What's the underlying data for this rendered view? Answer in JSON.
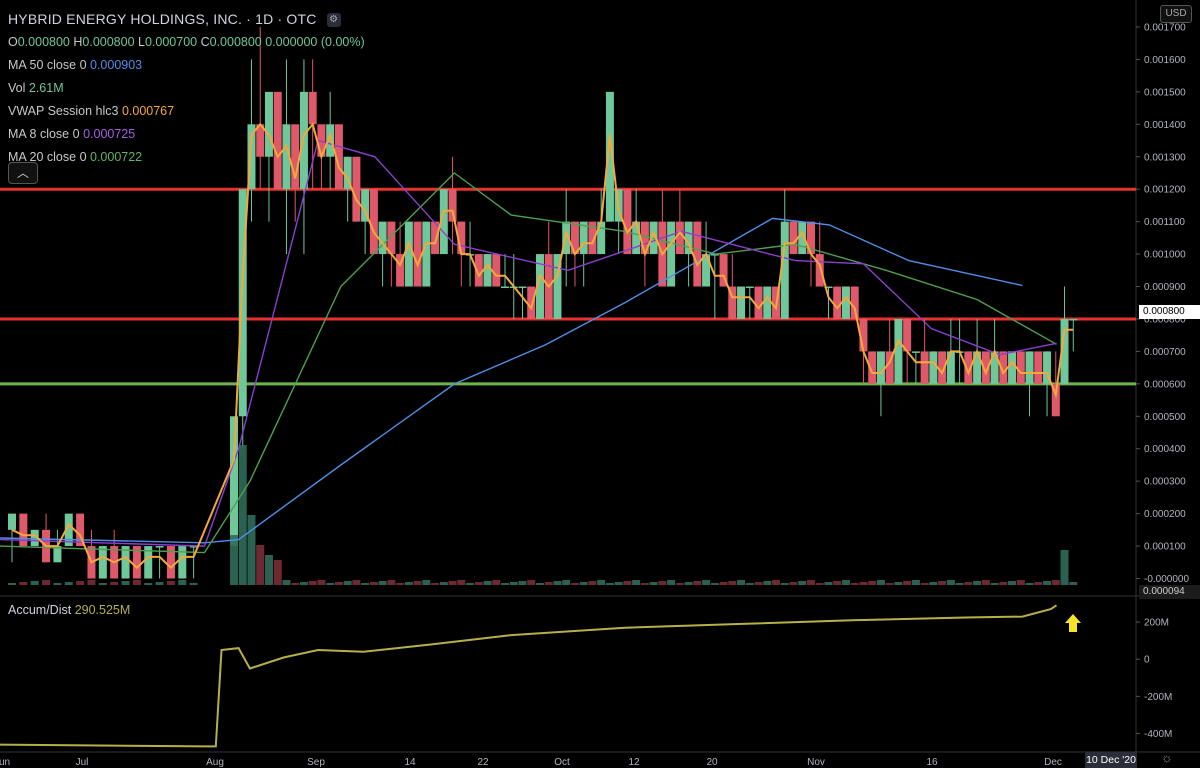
{
  "legend": {
    "title": "HYBRID ENERGY HOLDINGS, INC. · 1D · OTC",
    "ohlc": {
      "o": "0.000800",
      "h": "0.000800",
      "l": "0.000700",
      "c": "0.000800",
      "change": "0.000000 (0.00%)"
    },
    "ma50": {
      "label": "MA 50 close 0",
      "value": "0.000903"
    },
    "vol": {
      "label": "Vol",
      "value": "2.61M"
    },
    "vwap": {
      "label": "VWAP Session hlc3",
      "value": "0.000767"
    },
    "ma8": {
      "label": "MA 8 close 0",
      "value": "0.000725"
    },
    "ma20": {
      "label": "MA 20 close 0",
      "value": "0.000722"
    }
  },
  "sub_legend": {
    "label": "Accum/Dist",
    "value": "290.525M"
  },
  "currency_button": "USD",
  "crosshair_date": "10 Dec '20",
  "price_badges": [
    {
      "text": "0.000800",
      "color": "#ffffff",
      "bg": "#ffffff",
      "fg": "#000000"
    },
    {
      "text": "0.000094",
      "color": "#888888",
      "bg": "#1c1c1c",
      "fg": "#cccccc"
    }
  ],
  "colors": {
    "up": "#6fc79a",
    "down": "#e0596a",
    "ma50": "#4f8fe8",
    "ma8": "#8c3fd0",
    "ma20": "#4ea04e",
    "vwap": "#f4a83a",
    "ad": "#b7b04a",
    "resistance": "#e8322f",
    "support": "#6bb54f",
    "arrow": "#f5e52a"
  },
  "chart_data": {
    "type": "candlestick",
    "x_ticks": [
      "Jun",
      "Jul",
      "Aug",
      "Sep",
      "14",
      "22",
      "Oct",
      "12",
      "20",
      "Nov",
      "16",
      "Dec"
    ],
    "y_ticks": [
      "0.001700",
      "0.001600",
      "0.001500",
      "0.001400",
      "0.001300",
      "0.001200",
      "0.001100",
      "0.001000",
      "0.000900",
      "0.000800",
      "0.000700",
      "0.000600",
      "0.000500",
      "0.000400",
      "0.000300",
      "0.000200",
      "0.000100",
      "-0.000000"
    ],
    "ylim": [
      -2e-05,
      0.00174
    ],
    "horizontal_levels": [
      {
        "value": 0.0012,
        "color": "resistance"
      },
      {
        "value": 0.0008,
        "color": "resistance"
      },
      {
        "value": 0.0006,
        "color": "support"
      }
    ],
    "sub_y_ticks": [
      "200M",
      "0",
      "-200M",
      "-400M"
    ],
    "sub_ylim": [
      -500,
      330
    ],
    "candles_early": [
      {
        "o": 0.00015,
        "h": 0.0002,
        "l": 5e-05,
        "c": 0.0002
      },
      {
        "o": 0.0002,
        "h": 0.0002,
        "l": 0.0001,
        "c": 0.0001
      },
      {
        "o": 0.0001,
        "h": 0.00015,
        "l": 0.0001,
        "c": 0.00015
      },
      {
        "o": 0.00015,
        "h": 0.0002,
        "l": 5e-05,
        "c": 5e-05
      },
      {
        "o": 5e-05,
        "h": 0.00015,
        "l": 5e-05,
        "c": 0.0001
      },
      {
        "o": 0.0001,
        "h": 0.0002,
        "l": 0.0001,
        "c": 0.0002
      },
      {
        "o": 0.0002,
        "h": 0.0002,
        "l": 0.0001,
        "c": 0.0001
      },
      {
        "o": 0.0001,
        "h": 0.00015,
        "l": 0.0,
        "c": 0.0
      },
      {
        "o": 0.0,
        "h": 0.0001,
        "l": 0.0,
        "c": 0.0001
      },
      {
        "o": 0.0001,
        "h": 0.00015,
        "l": 0.0,
        "c": 0.0
      },
      {
        "o": 0.0,
        "h": 0.0001,
        "l": 0.0,
        "c": 0.0001
      },
      {
        "o": 0.0001,
        "h": 0.0001,
        "l": 0.0,
        "c": 0.0
      },
      {
        "o": 0.0,
        "h": 0.0001,
        "l": 0.0,
        "c": 0.0001
      },
      {
        "o": 0.0001,
        "h": 0.0001,
        "l": 0.0,
        "c": 0.0001
      },
      {
        "o": 0.0001,
        "h": 0.0001,
        "l": 0.0,
        "c": 0.0
      },
      {
        "o": 0.0,
        "h": 0.0001,
        "l": 0.0,
        "c": 0.0001
      },
      {
        "o": 0.0001,
        "h": 0.0001,
        "l": 0.0,
        "c": 0.0001
      }
    ],
    "candles_late": [
      {
        "o": 0.0001,
        "h": 0.0005,
        "l": 0.0001,
        "c": 0.0005
      },
      {
        "o": 0.0005,
        "h": 0.0012,
        "l": 0.0004,
        "c": 0.0012
      },
      {
        "o": 0.0012,
        "h": 0.0016,
        "l": 0.0011,
        "c": 0.0014
      },
      {
        "o": 0.0014,
        "h": 0.0017,
        "l": 0.0012,
        "c": 0.0013
      },
      {
        "o": 0.0013,
        "h": 0.0015,
        "l": 0.0011,
        "c": 0.0015
      },
      {
        "o": 0.0015,
        "h": 0.0015,
        "l": 0.0012,
        "c": 0.0012
      },
      {
        "o": 0.0012,
        "h": 0.0016,
        "l": 0.001,
        "c": 0.0014
      },
      {
        "o": 0.0014,
        "h": 0.0014,
        "l": 0.0011,
        "c": 0.0012
      },
      {
        "o": 0.0012,
        "h": 0.0016,
        "l": 0.001,
        "c": 0.0015
      },
      {
        "o": 0.0015,
        "h": 0.0016,
        "l": 0.0012,
        "c": 0.0014
      },
      {
        "o": 0.0014,
        "h": 0.0014,
        "l": 0.0012,
        "c": 0.0013
      },
      {
        "o": 0.0013,
        "h": 0.0015,
        "l": 0.0012,
        "c": 0.0014
      },
      {
        "o": 0.0014,
        "h": 0.0014,
        "l": 0.0012,
        "c": 0.0012
      },
      {
        "o": 0.0012,
        "h": 0.0013,
        "l": 0.0011,
        "c": 0.0013
      },
      {
        "o": 0.0013,
        "h": 0.0013,
        "l": 0.0011,
        "c": 0.0011
      },
      {
        "o": 0.0011,
        "h": 0.0012,
        "l": 0.001,
        "c": 0.0012
      },
      {
        "o": 0.0012,
        "h": 0.0012,
        "l": 0.001,
        "c": 0.001
      },
      {
        "o": 0.001,
        "h": 0.0011,
        "l": 0.0009,
        "c": 0.0011
      },
      {
        "o": 0.0011,
        "h": 0.0011,
        "l": 0.0009,
        "c": 0.001
      },
      {
        "o": 0.001,
        "h": 0.0011,
        "l": 0.0009,
        "c": 0.0009
      },
      {
        "o": 0.0009,
        "h": 0.0011,
        "l": 0.0009,
        "c": 0.0011
      },
      {
        "o": 0.0011,
        "h": 0.0011,
        "l": 0.0009,
        "c": 0.0009
      },
      {
        "o": 0.0009,
        "h": 0.0011,
        "l": 0.0009,
        "c": 0.0011
      },
      {
        "o": 0.0011,
        "h": 0.0011,
        "l": 0.001,
        "c": 0.001
      },
      {
        "o": 0.001,
        "h": 0.0012,
        "l": 0.001,
        "c": 0.0012
      },
      {
        "o": 0.0012,
        "h": 0.0013,
        "l": 0.001,
        "c": 0.0011
      },
      {
        "o": 0.0011,
        "h": 0.0011,
        "l": 0.0009,
        "c": 0.001
      },
      {
        "o": 0.001,
        "h": 0.0011,
        "l": 0.0009,
        "c": 0.001
      },
      {
        "o": 0.001,
        "h": 0.001,
        "l": 0.0009,
        "c": 0.0009
      },
      {
        "o": 0.0009,
        "h": 0.001,
        "l": 0.0009,
        "c": 0.001
      },
      {
        "o": 0.001,
        "h": 0.001,
        "l": 0.0009,
        "c": 0.0009
      },
      {
        "o": 0.0009,
        "h": 0.001,
        "l": 0.0009,
        "c": 0.0009
      },
      {
        "o": 0.0009,
        "h": 0.001,
        "l": 0.0008,
        "c": 0.0009
      },
      {
        "o": 0.0009,
        "h": 0.0009,
        "l": 0.0008,
        "c": 0.0009
      },
      {
        "o": 0.0009,
        "h": 0.0009,
        "l": 0.0008,
        "c": 0.0008
      },
      {
        "o": 0.0008,
        "h": 0.001,
        "l": 0.0008,
        "c": 0.001
      },
      {
        "o": 0.001,
        "h": 0.0011,
        "l": 0.0008,
        "c": 0.0008
      },
      {
        "o": 0.0008,
        "h": 0.001,
        "l": 0.0008,
        "c": 0.001
      },
      {
        "o": 0.001,
        "h": 0.0012,
        "l": 0.0009,
        "c": 0.0011
      },
      {
        "o": 0.0011,
        "h": 0.0011,
        "l": 0.0009,
        "c": 0.001
      },
      {
        "o": 0.001,
        "h": 0.0011,
        "l": 0.0009,
        "c": 0.0011
      },
      {
        "o": 0.0011,
        "h": 0.0011,
        "l": 0.001,
        "c": 0.001
      },
      {
        "o": 0.001,
        "h": 0.0012,
        "l": 0.001,
        "c": 0.0011
      },
      {
        "o": 0.0011,
        "h": 0.0015,
        "l": 0.0011,
        "c": 0.0015
      },
      {
        "o": 0.0011,
        "h": 0.0012,
        "l": 0.001,
        "c": 0.0012
      },
      {
        "o": 0.0012,
        "h": 0.0012,
        "l": 0.001,
        "c": 0.001
      },
      {
        "o": 0.001,
        "h": 0.0012,
        "l": 0.001,
        "c": 0.0011
      },
      {
        "o": 0.0011,
        "h": 0.0011,
        "l": 0.0009,
        "c": 0.001
      },
      {
        "o": 0.001,
        "h": 0.0011,
        "l": 0.001,
        "c": 0.0011
      },
      {
        "o": 0.0011,
        "h": 0.0012,
        "l": 0.0009,
        "c": 0.0009
      },
      {
        "o": 0.0009,
        "h": 0.0011,
        "l": 0.0009,
        "c": 0.0011
      },
      {
        "o": 0.0011,
        "h": 0.0012,
        "l": 0.001,
        "c": 0.001
      },
      {
        "o": 0.001,
        "h": 0.0011,
        "l": 0.0009,
        "c": 0.0011
      },
      {
        "o": 0.0011,
        "h": 0.0011,
        "l": 0.0009,
        "c": 0.0009
      },
      {
        "o": 0.0009,
        "h": 0.0011,
        "l": 0.0009,
        "c": 0.001
      },
      {
        "o": 0.001,
        "h": 0.001,
        "l": 0.0008,
        "c": 0.001
      },
      {
        "o": 0.001,
        "h": 0.001,
        "l": 0.0009,
        "c": 0.0009
      },
      {
        "o": 0.0009,
        "h": 0.001,
        "l": 0.0008,
        "c": 0.0008
      },
      {
        "o": 0.0008,
        "h": 0.0009,
        "l": 0.0008,
        "c": 0.0009
      },
      {
        "o": 0.0009,
        "h": 0.0009,
        "l": 0.0008,
        "c": 0.0009
      },
      {
        "o": 0.0009,
        "h": 0.0009,
        "l": 0.0008,
        "c": 0.0008
      },
      {
        "o": 0.0008,
        "h": 0.0009,
        "l": 0.0008,
        "c": 0.0009
      },
      {
        "o": 0.0009,
        "h": 0.0009,
        "l": 0.0008,
        "c": 0.0008
      },
      {
        "o": 0.0008,
        "h": 0.0012,
        "l": 0.0008,
        "c": 0.0011
      },
      {
        "o": 0.0011,
        "h": 0.0011,
        "l": 0.001,
        "c": 0.001
      },
      {
        "o": 0.001,
        "h": 0.0011,
        "l": 0.001,
        "c": 0.0011
      },
      {
        "o": 0.0011,
        "h": 0.0011,
        "l": 0.0009,
        "c": 0.001
      },
      {
        "o": 0.001,
        "h": 0.0011,
        "l": 0.0009,
        "c": 0.0009
      },
      {
        "o": 0.0009,
        "h": 0.0009,
        "l": 0.0008,
        "c": 0.0009
      },
      {
        "o": 0.0009,
        "h": 0.0009,
        "l": 0.0008,
        "c": 0.0008
      },
      {
        "o": 0.0008,
        "h": 0.0009,
        "l": 0.0008,
        "c": 0.0009
      },
      {
        "o": 0.0009,
        "h": 0.0009,
        "l": 0.0008,
        "c": 0.0008
      },
      {
        "o": 0.0008,
        "h": 0.0008,
        "l": 0.0006,
        "c": 0.0007
      },
      {
        "o": 0.0007,
        "h": 0.0007,
        "l": 0.0006,
        "c": 0.0006
      },
      {
        "o": 0.0006,
        "h": 0.0007,
        "l": 0.0005,
        "c": 0.0007
      },
      {
        "o": 0.0007,
        "h": 0.0008,
        "l": 0.0006,
        "c": 0.0006
      },
      {
        "o": 0.0006,
        "h": 0.0008,
        "l": 0.0006,
        "c": 0.0008
      },
      {
        "o": 0.0008,
        "h": 0.0008,
        "l": 0.0006,
        "c": 0.0007
      },
      {
        "o": 0.0007,
        "h": 0.0007,
        "l": 0.0006,
        "c": 0.0007
      },
      {
        "o": 0.0007,
        "h": 0.0008,
        "l": 0.0006,
        "c": 0.0006
      },
      {
        "o": 0.0006,
        "h": 0.0007,
        "l": 0.0006,
        "c": 0.0007
      },
      {
        "o": 0.0007,
        "h": 0.0007,
        "l": 0.0006,
        "c": 0.0006
      },
      {
        "o": 0.0006,
        "h": 0.0008,
        "l": 0.0006,
        "c": 0.0007
      },
      {
        "o": 0.0007,
        "h": 0.0008,
        "l": 0.0006,
        "c": 0.0007
      },
      {
        "o": 0.0007,
        "h": 0.0007,
        "l": 0.0006,
        "c": 0.0006
      },
      {
        "o": 0.0006,
        "h": 0.0008,
        "l": 0.0006,
        "c": 0.0007
      },
      {
        "o": 0.0007,
        "h": 0.0007,
        "l": 0.0006,
        "c": 0.0006
      },
      {
        "o": 0.0006,
        "h": 0.0008,
        "l": 0.0006,
        "c": 0.0007
      },
      {
        "o": 0.0007,
        "h": 0.0007,
        "l": 0.0006,
        "c": 0.0006
      },
      {
        "o": 0.0006,
        "h": 0.0007,
        "l": 0.0006,
        "c": 0.0007
      },
      {
        "o": 0.0007,
        "h": 0.0007,
        "l": 0.0006,
        "c": 0.0006
      },
      {
        "o": 0.0006,
        "h": 0.0007,
        "l": 0.0005,
        "c": 0.0007
      },
      {
        "o": 0.0007,
        "h": 0.0007,
        "l": 0.0006,
        "c": 0.0006
      },
      {
        "o": 0.0006,
        "h": 0.0007,
        "l": 0.0005,
        "c": 0.0007
      },
      {
        "o": 0.0006,
        "h": 0.0007,
        "l": 0.0005,
        "c": 0.0005
      },
      {
        "o": 0.0006,
        "h": 0.0009,
        "l": 0.0006,
        "c": 0.0008
      },
      {
        "o": 0.0008,
        "h": 0.0008,
        "l": 0.0007,
        "c": 0.0008
      }
    ],
    "series": [
      {
        "name": "MA 50 close 0",
        "color_key": "ma50",
        "points": [
          [
            0,
            0.000125
          ],
          [
            0.18,
            0.00011
          ],
          [
            0.21,
            0.00012
          ],
          [
            0.3,
            0.00035
          ],
          [
            0.4,
            0.0006
          ],
          [
            0.48,
            0.00072
          ],
          [
            0.55,
            0.00085
          ],
          [
            0.6,
            0.00095
          ],
          [
            0.68,
            0.00111
          ],
          [
            0.73,
            0.00109
          ],
          [
            0.8,
            0.00098
          ],
          [
            0.9,
            0.000903
          ]
        ]
      },
      {
        "name": "MA 20 close 0",
        "color_key": "ma20",
        "points": [
          [
            0,
            0.0001
          ],
          [
            0.18,
            8e-05
          ],
          [
            0.22,
            0.0003
          ],
          [
            0.3,
            0.0009
          ],
          [
            0.4,
            0.00125
          ],
          [
            0.45,
            0.00112
          ],
          [
            0.55,
            0.00107
          ],
          [
            0.63,
            0.001
          ],
          [
            0.7,
            0.00103
          ],
          [
            0.78,
            0.00095
          ],
          [
            0.86,
            0.00086
          ],
          [
            0.93,
            0.000722
          ]
        ]
      },
      {
        "name": "MA 8 close 0",
        "color_key": "ma8",
        "points": [
          [
            0,
            0.00012
          ],
          [
            0.18,
            0.0001
          ],
          [
            0.21,
            0.0004
          ],
          [
            0.28,
            0.00135
          ],
          [
            0.33,
            0.0013
          ],
          [
            0.4,
            0.00103
          ],
          [
            0.5,
            0.00095
          ],
          [
            0.6,
            0.00107
          ],
          [
            0.7,
            0.00098
          ],
          [
            0.76,
            0.00097
          ],
          [
            0.82,
            0.00077
          ],
          [
            0.88,
            0.00069
          ],
          [
            0.93,
            0.000725
          ]
        ]
      },
      {
        "name": "VWAP Session hlc3",
        "color_key": "vwap",
        "points": "typical-price"
      },
      {
        "name": "Accum/Dist",
        "color_key": "ad",
        "points": [
          [
            0,
            -460
          ],
          [
            0.18,
            -470
          ],
          [
            0.19,
            -470
          ],
          [
            0.195,
            50
          ],
          [
            0.21,
            60
          ],
          [
            0.22,
            -50
          ],
          [
            0.25,
            10
          ],
          [
            0.28,
            50
          ],
          [
            0.32,
            40
          ],
          [
            0.38,
            80
          ],
          [
            0.45,
            130
          ],
          [
            0.55,
            170
          ],
          [
            0.65,
            190
          ],
          [
            0.75,
            210
          ],
          [
            0.85,
            225
          ],
          [
            0.9,
            230
          ],
          [
            0.925,
            270
          ],
          [
            0.93,
            290.525
          ]
        ]
      }
    ]
  }
}
